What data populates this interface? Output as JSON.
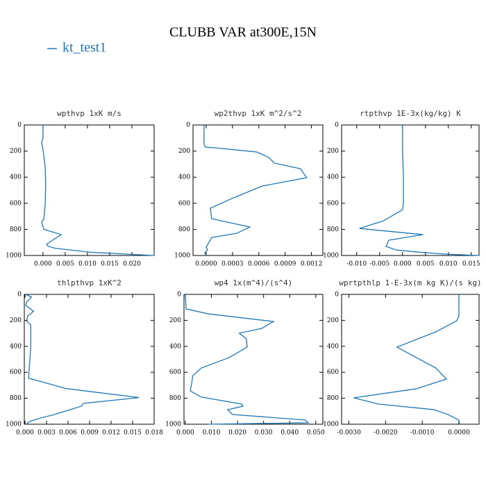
{
  "title": "CLUBB VAR at300E,15N",
  "legend": [
    {
      "name": "kt_test1",
      "color": "#1f77b4"
    }
  ],
  "chart_data": [
    {
      "type": "line",
      "title": "wpthvp  1xK m/s",
      "y": [
        0,
        100,
        130,
        190,
        320,
        450,
        610,
        720,
        745,
        800,
        840,
        895,
        915,
        930,
        945,
        975,
        1000
      ],
      "series": [
        {
          "color": "#1f77b4",
          "values": [
            0.0,
            0.0,
            -0.0003,
            0.0,
            0.0005,
            0.0006,
            0.0005,
            0.0002,
            -0.0003,
            0.0002,
            0.0041,
            0.0016,
            0.0008,
            0.0012,
            0.0028,
            0.0106,
            0.025
          ]
        }
      ],
      "xlim": [
        -0.0042,
        0.025
      ],
      "xticks": [
        {
          "value": 0,
          "label": "0.000"
        },
        {
          "value": 0.005,
          "label": "0.005"
        },
        {
          "value": 0.01,
          "label": "0.010"
        },
        {
          "value": 0.015,
          "label": "0.015"
        },
        {
          "value": 0.02,
          "label": "0.020"
        }
      ],
      "ylim": [
        0,
        1000
      ],
      "yticks": [
        0,
        200,
        400,
        600,
        800,
        1000
      ],
      "y_inverted": true
    },
    {
      "type": "line",
      "title": "wp2thvp  1xK m^2/s^2",
      "y": [
        0,
        149,
        170,
        176,
        207,
        245,
        293,
        335,
        404,
        468,
        559,
        638,
        718,
        782,
        830,
        862,
        899,
        936,
        957,
        979,
        1000
      ],
      "series": [
        {
          "color": "#1f77b4",
          "values": [
            -2.4e-05,
            -2.4e-05,
            -8e-06,
            0.000118,
            0.000577,
            0.000703,
            0.000782,
            0.001074,
            0.001146,
            0.00064,
            0.000308,
            4.7e-05,
            6.3e-05,
            0.000498,
            0.000348,
            6.3e-05,
            3.2e-05,
            0.0,
            1.6e-05,
            -1.6e-05,
            0.0
          ]
        }
      ],
      "xlim": [
        -0.00015,
        0.00133
      ],
      "xticks": [
        {
          "value": 0,
          "label": "0.0000"
        },
        {
          "value": 0.0003,
          "label": "0.0003"
        },
        {
          "value": 0.0006,
          "label": "0.0006"
        },
        {
          "value": 0.0009,
          "label": "0.0009"
        },
        {
          "value": 0.0012,
          "label": "0.0012"
        }
      ],
      "ylim": [
        0,
        1000
      ],
      "yticks": [
        0,
        200,
        400,
        600,
        800,
        1000
      ],
      "y_inverted": true
    },
    {
      "type": "line",
      "title": "rtpthvp  1E-3x(kg/kg) K",
      "y": [
        0,
        200,
        400,
        600,
        650,
        735,
        793,
        840,
        883,
        930,
        957,
        973,
        989,
        1000
      ],
      "series": [
        {
          "color": "#1f77b4",
          "values": [
            0.0,
            0.0,
            0.0002,
            0.0002,
            0.0,
            -0.0042,
            -0.0094,
            0.0045,
            -0.003,
            -0.0036,
            -0.0015,
            0.003,
            0.0091,
            0.0167
          ]
        }
      ],
      "xlim": [
        -0.0133,
        0.0167
      ],
      "xticks": [
        {
          "value": -0.01,
          "label": "-0.010"
        },
        {
          "value": -0.005,
          "label": "-0.005"
        },
        {
          "value": 0,
          "label": "0.000"
        },
        {
          "value": 0.005,
          "label": "0.005"
        },
        {
          "value": 0.01,
          "label": "0.010"
        },
        {
          "value": 0.015,
          "label": "0.015"
        }
      ],
      "ylim": [
        0,
        1000
      ],
      "yticks": [
        0,
        200,
        400,
        600,
        800,
        1000
      ],
      "y_inverted": true
    },
    {
      "type": "line",
      "title": "thlpthvp  1xK^2",
      "y": [
        0,
        20,
        60,
        85,
        130,
        165,
        205,
        235,
        300,
        405,
        565,
        645,
        725,
        795,
        840,
        860,
        890,
        930,
        950,
        980,
        1000
      ],
      "series": [
        {
          "color": "#1f77b4",
          "values": [
            0.0001,
            0.0009,
            0.0002,
            0.0001,
            0.0012,
            0.0004,
            0.0002,
            0.0008,
            0.0008,
            0.0008,
            0.0006,
            0.0005,
            0.0057,
            0.0159,
            0.0081,
            0.0079,
            0.0062,
            0.0038,
            0.0023,
            0.0006,
            0.0002
          ]
        }
      ],
      "xlim": [
        -0.0001,
        0.018
      ],
      "xticks": [
        {
          "value": 0,
          "label": "0.000"
        },
        {
          "value": 0.003,
          "label": "0.003"
        },
        {
          "value": 0.006,
          "label": "0.006"
        },
        {
          "value": 0.009,
          "label": "0.009"
        },
        {
          "value": 0.012,
          "label": "0.012"
        },
        {
          "value": 0.015,
          "label": "0.015"
        },
        {
          "value": 0.018,
          "label": "0.018"
        }
      ],
      "ylim": [
        0,
        1000
      ],
      "yticks": [
        0,
        200,
        400,
        600,
        800,
        1000
      ],
      "y_inverted": true
    },
    {
      "type": "line",
      "title": "wp4  1x(m^4)/(s^4)",
      "y": [
        0,
        112,
        150,
        209,
        262,
        299,
        342,
        406,
        487,
        567,
        626,
        690,
        743,
        791,
        845,
        861,
        888,
        925,
        968,
        989,
        1000
      ],
      "series": [
        {
          "color": "#1f77b4",
          "values": [
            0.0,
            0.0003,
            0.0088,
            0.0338,
            0.0293,
            0.0207,
            0.0234,
            0.0237,
            0.0168,
            0.0061,
            0.0029,
            0.0024,
            0.0019,
            0.0061,
            0.0216,
            0.0221,
            0.0162,
            0.0181,
            0.046,
            0.0471,
            0.0088
          ]
        }
      ],
      "xlim": [
        -0.0005,
        0.0527
      ],
      "xticks": [
        {
          "value": 0,
          "label": "0.000"
        },
        {
          "value": 0.01,
          "label": "0.010"
        },
        {
          "value": 0.02,
          "label": "0.020"
        },
        {
          "value": 0.03,
          "label": "0.030"
        },
        {
          "value": 0.04,
          "label": "0.040"
        },
        {
          "value": 0.05,
          "label": "0.050"
        }
      ],
      "ylim": [
        0,
        1000
      ],
      "yticks": [
        0,
        200,
        400,
        600,
        800,
        1000
      ],
      "y_inverted": true
    },
    {
      "type": "line",
      "title": "wprtpthlp  1-E-3x(m kg K)/(s kg)",
      "y": [
        0,
        166,
        203,
        289,
        406,
        567,
        652,
        727,
        797,
        845,
        888,
        925,
        968,
        1000
      ],
      "series": [
        {
          "color": "#1f77b4",
          "values": [
            0.0,
            0.0,
            -5.7e-05,
            -0.00063,
            -0.00169,
            -0.00063,
            -0.00034,
            -0.00116,
            -0.00287,
            -0.00219,
            -0.00068,
            -0.0003,
            0.0,
            2e-05
          ]
        }
      ],
      "xlim": [
        -0.0032,
        0.00055
      ],
      "xticks": [
        {
          "value": -0.003,
          "label": "-0.0030"
        },
        {
          "value": -0.002,
          "label": "-0.0020"
        },
        {
          "value": -0.001,
          "label": "-0.0010"
        },
        {
          "value": 0,
          "label": "0.0000"
        }
      ],
      "ylim": [
        0,
        1000
      ],
      "yticks": [
        0,
        200,
        400,
        600,
        800,
        1000
      ],
      "y_inverted": true
    }
  ]
}
